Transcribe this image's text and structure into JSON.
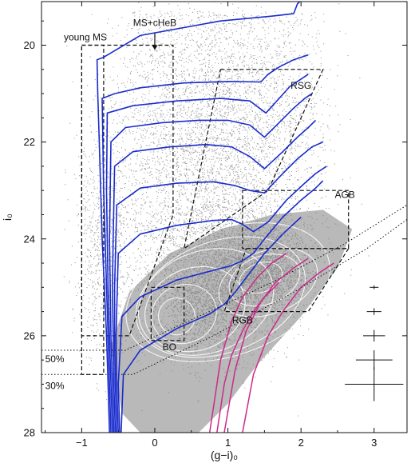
{
  "chart_data": {
    "type": "scatter",
    "title": "",
    "xlabel": "(g−i)₀",
    "ylabel": "i₀",
    "xlim": [
      -1.55,
      3.45
    ],
    "ylim": [
      28,
      19.1
    ],
    "y_inverted": true,
    "grid": false,
    "legend": "none",
    "x_ticks": [
      {
        "value": -1,
        "label": "−1"
      },
      {
        "value": 0,
        "label": "0"
      },
      {
        "value": 1,
        "label": "1"
      },
      {
        "value": 2,
        "label": "2"
      },
      {
        "value": 3,
        "label": "3"
      }
    ],
    "y_ticks": [
      {
        "value": 20,
        "label": "20"
      },
      {
        "value": 22,
        "label": "22"
      },
      {
        "value": 24,
        "label": "24"
      },
      {
        "value": 26,
        "label": "26"
      },
      {
        "value": 28,
        "label": "28"
      }
    ],
    "colors": {
      "stars": "#7a7a7a",
      "dense": "#808080",
      "contours": "#ffffff",
      "young_isochrones": "#1a2ccc",
      "old_isochrones": "#cc2a8a",
      "boxes": "#111111",
      "limits": "#111111",
      "error_bars": "#111111"
    },
    "annotations": [
      {
        "text": "MS+cHeB",
        "x": 0.0,
        "y": 19.6
      },
      {
        "text": "young MS",
        "x": -0.95,
        "y": 19.9
      },
      {
        "text": "RSG",
        "x": 2.0,
        "y": 20.9
      },
      {
        "text": "AGB",
        "x": 2.6,
        "y": 23.15
      },
      {
        "text": "RGB",
        "x": 1.2,
        "y": 25.75
      },
      {
        "text": "BO",
        "x": 0.2,
        "y": 26.3
      },
      {
        "text": "50%",
        "x": -1.5,
        "y": 26.55
      },
      {
        "text": "30%",
        "x": -1.5,
        "y": 27.1
      }
    ],
    "arrow": {
      "x": 0.0,
      "from_y": 19.75,
      "to_y": 20.1
    },
    "completeness_limits": [
      {
        "label": "50%",
        "points": [
          [
            -1.55,
            26.3
          ],
          [
            -0.4,
            26.3
          ],
          [
            0.6,
            25.6
          ],
          [
            1.6,
            24.9
          ],
          [
            2.6,
            24.1
          ],
          [
            3.45,
            23.3
          ]
        ]
      },
      {
        "label": "30%",
        "points": [
          [
            -1.55,
            26.8
          ],
          [
            -0.3,
            26.8
          ],
          [
            0.8,
            26.0
          ],
          [
            1.9,
            25.1
          ],
          [
            2.9,
            24.2
          ],
          [
            3.45,
            23.6
          ]
        ]
      }
    ],
    "selection_boxes": [
      {
        "name": "young MS",
        "points": [
          [
            -1.0,
            20.0
          ],
          [
            -0.7,
            20.0
          ],
          [
            -0.7,
            26.8
          ],
          [
            -1.0,
            26.8
          ],
          [
            -1.0,
            20.0
          ]
        ]
      },
      {
        "name": "MS+cHeB",
        "points": [
          [
            -1.0,
            20.0
          ],
          [
            0.25,
            20.0
          ],
          [
            0.25,
            23.5
          ],
          [
            -0.35,
            26.0
          ],
          [
            -1.0,
            26.0
          ],
          [
            -1.0,
            20.0
          ]
        ]
      },
      {
        "name": "RSG",
        "points": [
          [
            0.9,
            20.5
          ],
          [
            2.3,
            20.5
          ],
          [
            1.55,
            23.0
          ],
          [
            0.4,
            24.2
          ],
          [
            0.9,
            20.5
          ]
        ]
      },
      {
        "name": "AGB",
        "points": [
          [
            1.2,
            23.0
          ],
          [
            2.65,
            23.0
          ],
          [
            2.65,
            24.2
          ],
          [
            1.2,
            24.2
          ],
          [
            1.2,
            23.0
          ]
        ]
      },
      {
        "name": "RGB",
        "points": [
          [
            1.25,
            24.2
          ],
          [
            2.65,
            24.2
          ],
          [
            2.1,
            25.5
          ],
          [
            0.95,
            25.5
          ],
          [
            1.25,
            24.2
          ]
        ]
      },
      {
        "name": "BO",
        "points": [
          [
            -0.05,
            25.0
          ],
          [
            0.4,
            25.0
          ],
          [
            0.4,
            26.1
          ],
          [
            -0.05,
            26.1
          ],
          [
            -0.05,
            25.0
          ]
        ]
      }
    ],
    "young_isochrones": [
      [
        [
          -0.62,
          28.0
        ],
        [
          -0.64,
          27.0
        ],
        [
          -0.66,
          26.0
        ],
        [
          -0.69,
          25.0
        ],
        [
          -0.72,
          24.0
        ],
        [
          -0.74,
          23.0
        ],
        [
          -0.76,
          22.0
        ],
        [
          -0.78,
          21.0
        ],
        [
          -0.79,
          20.3
        ],
        [
          -0.7,
          20.25
        ],
        [
          -0.2,
          19.8
        ],
        [
          0.9,
          19.5
        ],
        [
          1.6,
          19.4
        ],
        [
          1.9,
          19.35
        ],
        [
          1.95,
          19.15
        ],
        [
          2.05,
          19.0
        ]
      ],
      [
        [
          -0.6,
          28.0
        ],
        [
          -0.62,
          27.0
        ],
        [
          -0.64,
          26.0
        ],
        [
          -0.66,
          25.0
        ],
        [
          -0.68,
          24.0
        ],
        [
          -0.7,
          23.0
        ],
        [
          -0.71,
          22.0
        ],
        [
          -0.72,
          21.1
        ],
        [
          -0.55,
          21.0
        ],
        [
          -0.2,
          20.88
        ],
        [
          0.4,
          20.78
        ],
        [
          1.0,
          20.75
        ],
        [
          1.45,
          20.76
        ],
        [
          1.55,
          20.6
        ],
        [
          1.7,
          20.45
        ],
        [
          1.9,
          20.3
        ],
        [
          2.1,
          20.2
        ]
      ],
      [
        [
          -0.58,
          28.0
        ],
        [
          -0.6,
          27.0
        ],
        [
          -0.62,
          26.0
        ],
        [
          -0.64,
          25.0
        ],
        [
          -0.65,
          24.0
        ],
        [
          -0.66,
          23.0
        ],
        [
          -0.65,
          21.4
        ],
        [
          -0.3,
          21.25
        ],
        [
          0.3,
          21.15
        ],
        [
          0.9,
          21.1
        ],
        [
          1.3,
          21.15
        ],
        [
          1.52,
          21.4
        ],
        [
          1.7,
          21.1
        ],
        [
          1.85,
          20.85
        ],
        [
          2.0,
          20.7
        ],
        [
          2.1,
          20.6
        ]
      ],
      [
        [
          -0.56,
          28.0
        ],
        [
          -0.58,
          27.0
        ],
        [
          -0.6,
          26.0
        ],
        [
          -0.61,
          25.0
        ],
        [
          -0.62,
          24.0
        ],
        [
          -0.6,
          22.0
        ],
        [
          -0.4,
          21.7
        ],
        [
          0.1,
          21.6
        ],
        [
          0.6,
          21.55
        ],
        [
          1.0,
          21.55
        ],
        [
          1.3,
          21.65
        ],
        [
          1.5,
          21.9
        ],
        [
          1.7,
          21.6
        ],
        [
          1.9,
          21.3
        ],
        [
          2.05,
          21.1
        ],
        [
          2.15,
          21.0
        ]
      ],
      [
        [
          -0.54,
          28.0
        ],
        [
          -0.56,
          27.0
        ],
        [
          -0.57,
          26.0
        ],
        [
          -0.58,
          25.0
        ],
        [
          -0.57,
          24.0
        ],
        [
          -0.55,
          22.5
        ],
        [
          -0.3,
          22.2
        ],
        [
          0.2,
          22.1
        ],
        [
          0.7,
          22.05
        ],
        [
          1.05,
          22.1
        ],
        [
          1.3,
          22.3
        ],
        [
          1.5,
          22.55
        ],
        [
          1.75,
          22.2
        ],
        [
          1.95,
          21.9
        ],
        [
          2.1,
          21.7
        ],
        [
          2.2,
          21.55
        ]
      ],
      [
        [
          -0.52,
          28.0
        ],
        [
          -0.54,
          27.0
        ],
        [
          -0.55,
          26.0
        ],
        [
          -0.55,
          25.0
        ],
        [
          -0.52,
          23.3
        ],
        [
          -0.2,
          22.95
        ],
        [
          0.3,
          22.85
        ],
        [
          0.8,
          22.82
        ],
        [
          1.1,
          22.9
        ],
        [
          1.3,
          23.0
        ],
        [
          1.5,
          23.05
        ],
        [
          1.75,
          22.65
        ],
        [
          1.95,
          22.35
        ],
        [
          2.15,
          22.1
        ],
        [
          2.3,
          22.0
        ]
      ],
      [
        [
          -0.5,
          28.0
        ],
        [
          -0.52,
          27.0
        ],
        [
          -0.53,
          26.0
        ],
        [
          -0.5,
          24.3
        ],
        [
          -0.2,
          23.9
        ],
        [
          0.3,
          23.72
        ],
        [
          0.8,
          23.62
        ],
        [
          1.05,
          23.6
        ],
        [
          1.2,
          23.7
        ],
        [
          1.35,
          23.85
        ],
        [
          1.55,
          23.65
        ],
        [
          1.8,
          23.2
        ],
        [
          2.05,
          22.85
        ],
        [
          2.2,
          22.65
        ],
        [
          2.35,
          22.5
        ]
      ],
      [
        [
          -0.48,
          28.0
        ],
        [
          -0.5,
          27.0
        ],
        [
          -0.45,
          25.6
        ],
        [
          -0.2,
          25.2
        ],
        [
          0.3,
          24.85
        ],
        [
          0.8,
          24.65
        ],
        [
          1.05,
          24.55
        ],
        [
          1.2,
          24.45
        ],
        [
          1.35,
          24.3
        ],
        [
          1.5,
          24.0
        ],
        [
          1.75,
          23.55
        ],
        [
          2.0,
          23.2
        ],
        [
          2.2,
          22.95
        ],
        [
          2.3,
          22.8
        ]
      ],
      [
        [
          -0.46,
          28.0
        ],
        [
          -0.43,
          26.8
        ],
        [
          -0.2,
          26.3
        ],
        [
          0.3,
          25.85
        ],
        [
          0.75,
          25.55
        ],
        [
          0.95,
          25.35
        ],
        [
          1.1,
          25.1
        ],
        [
          1.3,
          24.7
        ],
        [
          1.5,
          24.3
        ],
        [
          1.75,
          23.9
        ],
        [
          2.0,
          23.55
        ]
      ]
    ],
    "old_isochrones": [
      [
        [
          0.75,
          28.0
        ],
        [
          0.9,
          26.5
        ],
        [
          1.05,
          25.7
        ],
        [
          1.2,
          25.2
        ],
        [
          1.4,
          24.8
        ],
        [
          1.6,
          24.5
        ],
        [
          1.8,
          24.3
        ]
      ],
      [
        [
          0.95,
          28.0
        ],
        [
          1.1,
          26.7
        ],
        [
          1.25,
          25.9
        ],
        [
          1.45,
          25.3
        ],
        [
          1.65,
          24.9
        ],
        [
          1.9,
          24.6
        ],
        [
          2.1,
          24.4
        ]
      ],
      [
        [
          1.2,
          28.0
        ],
        [
          1.35,
          26.8
        ],
        [
          1.55,
          26.0
        ],
        [
          1.75,
          25.5
        ],
        [
          2.0,
          25.0
        ],
        [
          2.25,
          24.7
        ],
        [
          2.45,
          24.5
        ]
      ],
      [
        [
          0.85,
          28.0
        ],
        [
          0.95,
          27.0
        ],
        [
          1.05,
          26.4
        ],
        [
          1.2,
          25.9
        ],
        [
          1.35,
          25.5
        ],
        [
          1.5,
          25.2
        ],
        [
          1.7,
          24.9
        ]
      ]
    ],
    "contours": [
      {
        "cx": 0.3,
        "cy": 25.6,
        "rx": 0.25,
        "ry": 0.38
      },
      {
        "cx": 0.4,
        "cy": 25.55,
        "rx": 0.45,
        "ry": 0.6
      },
      {
        "cx": 0.55,
        "cy": 25.45,
        "rx": 0.7,
        "ry": 0.85
      },
      {
        "cx": 0.7,
        "cy": 25.3,
        "rx": 0.95,
        "ry": 1.05
      },
      {
        "cx": 1.45,
        "cy": 24.8,
        "rx": 0.3,
        "ry": 0.3
      },
      {
        "cx": 1.5,
        "cy": 24.85,
        "rx": 0.5,
        "ry": 0.5
      },
      {
        "cx": 1.55,
        "cy": 24.9,
        "rx": 0.7,
        "ry": 0.65
      },
      {
        "cx": 0.9,
        "cy": 25.2,
        "rx": 1.2,
        "ry": 1.15
      },
      {
        "cx": 1.0,
        "cy": 25.1,
        "rx": 1.45,
        "ry": 1.3
      }
    ],
    "error_bars": [
      {
        "x": 3.0,
        "y": 25.0,
        "xerr": 0.06,
        "yerr": 0.04
      },
      {
        "x": 3.0,
        "y": 25.5,
        "xerr": 0.1,
        "yerr": 0.07
      },
      {
        "x": 3.0,
        "y": 26.0,
        "xerr": 0.15,
        "yerr": 0.12
      },
      {
        "x": 3.0,
        "y": 26.5,
        "xerr": 0.25,
        "yerr": 0.2
      },
      {
        "x": 3.0,
        "y": 27.0,
        "xerr": 0.4,
        "yerr": 0.35
      }
    ],
    "point_density_regions": [
      {
        "cx": 0.8,
        "cy": 25.0,
        "sx": 0.9,
        "sy": 1.3,
        "weight": 0.45
      },
      {
        "cx": 1.5,
        "cy": 24.6,
        "sx": 0.6,
        "sy": 0.8,
        "weight": 0.2
      },
      {
        "cx": 0.8,
        "cy": 22.0,
        "sx": 1.1,
        "sy": 2.4,
        "weight": 0.25
      },
      {
        "cx": -0.7,
        "cy": 24.0,
        "sx": 0.35,
        "sy": 2.2,
        "weight": 0.1
      }
    ]
  }
}
